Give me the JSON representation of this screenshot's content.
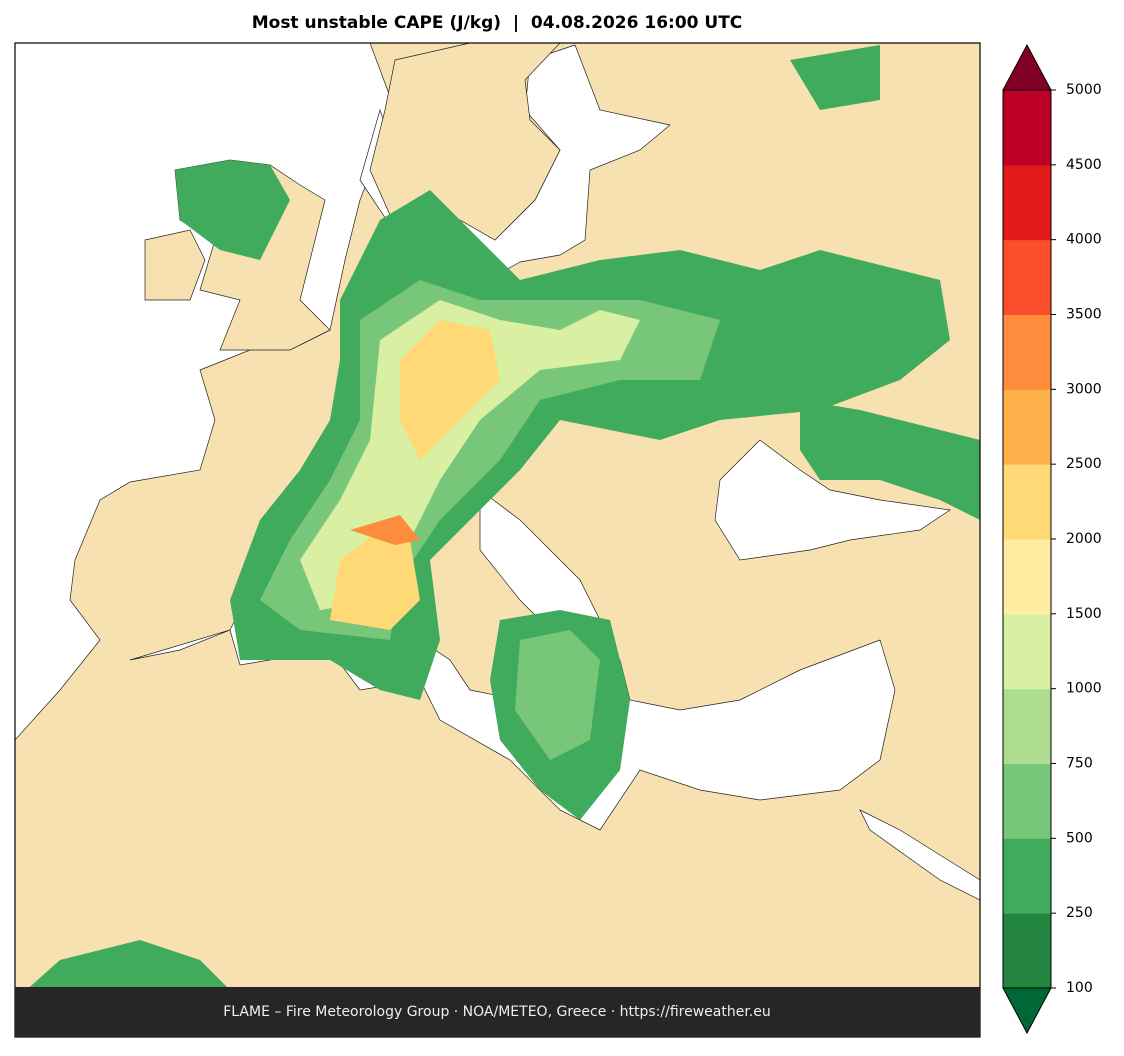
{
  "map": {
    "title": "Most unstable CAPE (J/kg)  |  04.08.2026 16:00 UTC",
    "footer": "FLAME – Fire Meteorology Group · NOA/METEO, Greece · https://fireweather.eu"
  },
  "colorbar": {
    "ticks": [
      100,
      250,
      500,
      750,
      1000,
      1500,
      2000,
      2500,
      3000,
      3500,
      4000,
      4500,
      5000
    ],
    "colors": [
      "#23843f",
      "#41ab5d",
      "#78c679",
      "#addd8e",
      "#d9f0a3",
      "#ffeda0",
      "#fed976",
      "#feb24c",
      "#fd8d3c",
      "#fc4e2a",
      "#e31a1c",
      "#bd0026"
    ],
    "under_color": "#006837",
    "over_color": "#800026"
  }
}
